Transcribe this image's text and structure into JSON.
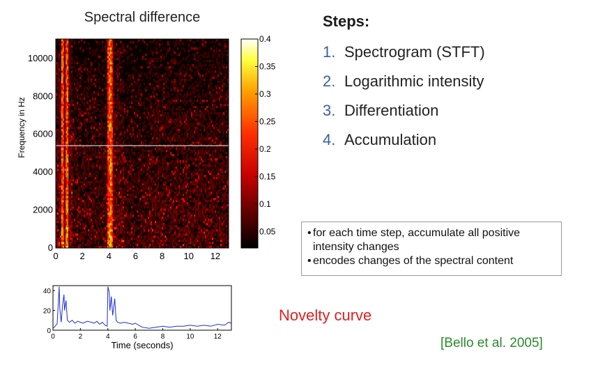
{
  "spectrogram": {
    "title": "Spectral difference",
    "chart_data": {
      "type": "heatmap",
      "title": "Spectral difference",
      "xlabel": "",
      "ylabel": "Frequency in Hz",
      "xlim": [
        0,
        13
      ],
      "ylim": [
        0,
        11025
      ],
      "x_ticks": [
        "0",
        "2",
        "4",
        "6",
        "8",
        "10",
        "12"
      ],
      "y_ticks": [
        "0",
        "2000",
        "4000",
        "6000",
        "8000",
        "10000"
      ],
      "colorbar": {
        "range": [
          0.02,
          0.4
        ],
        "ticks": [
          "0.05",
          "0.1",
          "0.15",
          "0.2",
          "0.25",
          "0.3",
          "0.35",
          "0.4"
        ],
        "colormap": "hot"
      },
      "notable_onsets_s": [
        0.5,
        0.85,
        4.0,
        4.15
      ],
      "marker_line_hz": 5400
    }
  },
  "novelty": {
    "chart_data": {
      "type": "line",
      "xlabel": "Time (seconds)",
      "ylabel": "",
      "xlim": [
        0,
        13
      ],
      "ylim": [
        0,
        45
      ],
      "x_ticks": [
        "0",
        "2",
        "4",
        "6",
        "8",
        "10",
        "12"
      ],
      "y_ticks": [
        "0",
        "20",
        "40"
      ],
      "series": [
        {
          "x": [
            0,
            0.1,
            0.2,
            0.3,
            0.4,
            0.45,
            0.5,
            0.6,
            0.7,
            0.8,
            0.85,
            0.95,
            1.05,
            1.2,
            1.4,
            1.6,
            1.8,
            2.0,
            2.2,
            2.5,
            2.8,
            3.0,
            3.2,
            3.4,
            3.6,
            3.8,
            3.95,
            4.0,
            4.1,
            4.15,
            4.25,
            4.35,
            4.5,
            4.6,
            4.7,
            4.9,
            5.2,
            5.5,
            5.8,
            6.0,
            6.5,
            7.0,
            7.5,
            8.0,
            8.5,
            9.0,
            9.5,
            10.0,
            10.5,
            11.0,
            11.5,
            12.0,
            12.5,
            12.8,
            13.0
          ],
          "y": [
            2,
            3,
            5,
            6,
            30,
            44,
            22,
            8,
            25,
            36,
            20,
            30,
            10,
            8,
            10,
            7,
            9,
            8,
            7,
            9,
            8,
            7,
            9,
            6,
            8,
            5,
            4,
            44,
            38,
            20,
            34,
            15,
            32,
            10,
            8,
            7,
            8,
            7,
            6,
            7,
            3,
            2,
            3,
            4,
            3,
            4,
            4,
            5,
            4,
            5,
            4,
            6,
            5,
            8,
            7
          ]
        }
      ]
    }
  },
  "steps": {
    "title": "Steps:",
    "items": [
      {
        "num": "1.",
        "label": "Spectrogram (STFT)"
      },
      {
        "num": "2.",
        "label": "Logarithmic intensity"
      },
      {
        "num": "3.",
        "label": "Differentiation"
      },
      {
        "num": "4.",
        "label": "Accumulation"
      }
    ]
  },
  "note": {
    "bullets": [
      {
        "bullet": "•",
        "text": "for each time step, accumulate all positive intensity changes"
      },
      {
        "bullet": "•",
        "text": "encodes changes of the spectral content"
      }
    ]
  },
  "novelty_label": "Novelty curve",
  "citation": "[Bello et al. 2005]",
  "colors": {
    "novelty_line": "#1f2cd6",
    "novelty_label": "#e02020",
    "citation": "#2a8a2a",
    "step_number": "#3a5f9a"
  }
}
